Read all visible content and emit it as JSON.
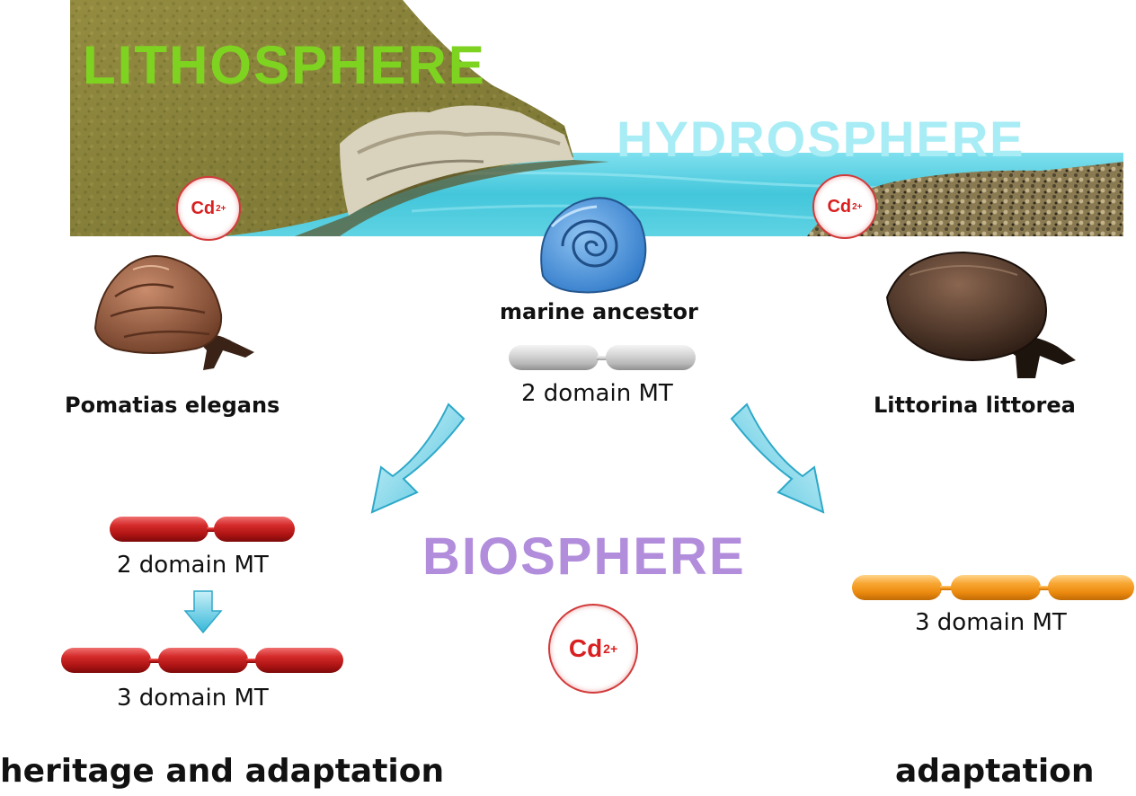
{
  "spheres": {
    "lithosphere": "LITHOSPHERE",
    "hydrosphere": "HYDROSPHERE",
    "biosphere": "BIOSPHERE"
  },
  "ion": {
    "symbol": "Cd",
    "charge": "2+"
  },
  "ancestor": {
    "name": "marine ancestor",
    "mt_label": "2 domain MT"
  },
  "left_species": {
    "name": "Pomatias elegans",
    "mt_before": "2 domain MT",
    "mt_after": "3 domain MT",
    "outcome": "heritage and adaptation"
  },
  "right_species": {
    "name": "Littorina littorea",
    "mt": "3 domain MT",
    "outcome": "adaptation"
  },
  "colors": {
    "lithosphere": "#7ed321",
    "hydrosphere": "#a8ecf5",
    "biosphere": "#b18ddb",
    "cd_text": "#d92020",
    "sea": "#4fd0e0",
    "cliff_grass": "#8a8a3a",
    "mt_ancestor": "#c4c4c4",
    "mt_left": "#c41e1e",
    "mt_right": "#f39a22",
    "arrow": "#5ccde6"
  },
  "icons": [
    "cadmium-ion-icon",
    "snail-shell-icon",
    "curved-arrow-icon",
    "down-arrow-icon"
  ]
}
